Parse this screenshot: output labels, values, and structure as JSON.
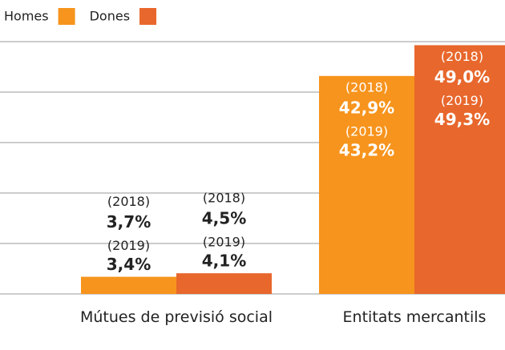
{
  "chart_data": {
    "type": "bar",
    "categories": [
      "Mútues de previsió social",
      "Entitats mercantils"
    ],
    "year_labels": [
      "(2018)",
      "(2019)"
    ],
    "series": [
      {
        "name": "Homes",
        "color": "#f7941d",
        "values": [
          3.4,
          43.2
        ],
        "value_labels": [
          "3,4%",
          "43,2%"
        ],
        "labels_2018": [
          "3,7%",
          "42,9%"
        ]
      },
      {
        "name": "Dones",
        "color": "#e8672c",
        "values": [
          4.1,
          49.3
        ],
        "value_labels": [
          "4,1%",
          "49,3%"
        ],
        "labels_2018": [
          "4,5%",
          "49,0%"
        ]
      }
    ],
    "ylim": [
      0,
      50
    ],
    "yticks": [
      0,
      10,
      20,
      30,
      40,
      50
    ],
    "grid": true
  }
}
